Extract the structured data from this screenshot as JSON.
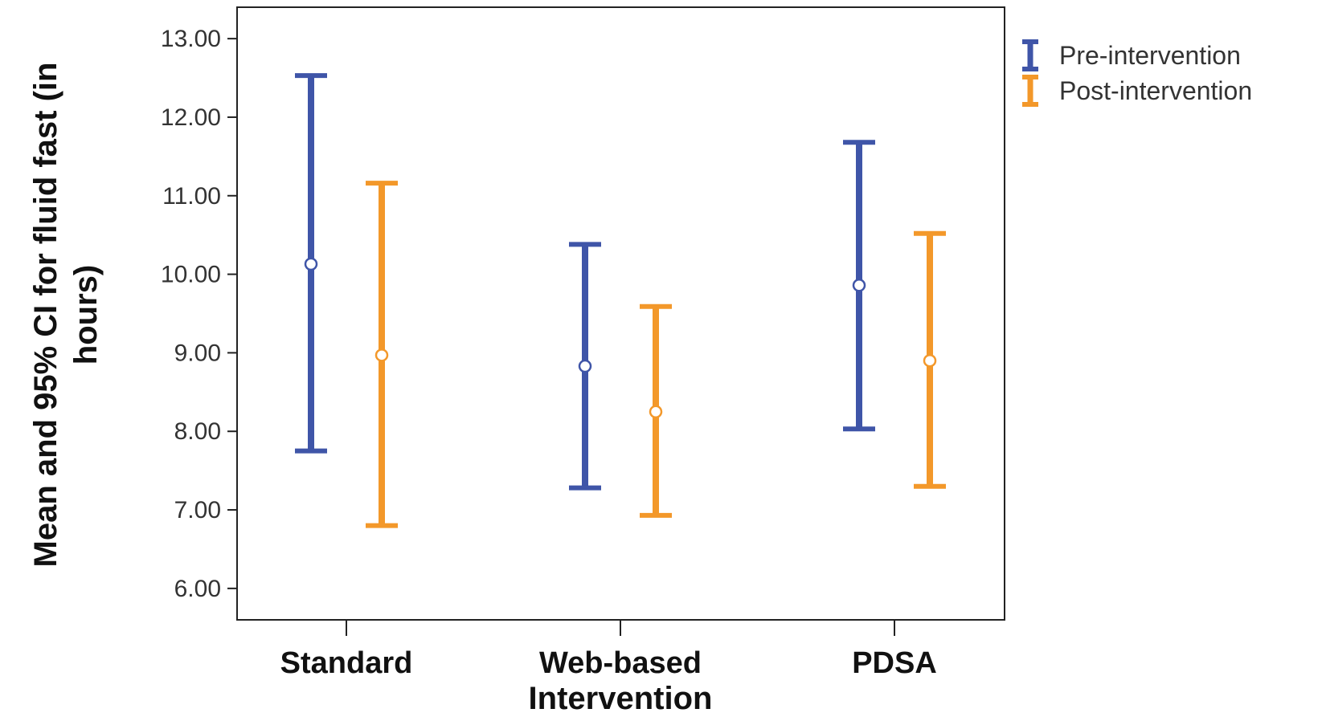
{
  "colors": {
    "pre": "#3F55A8",
    "post": "#F3982A",
    "frame": "#222222",
    "tick_text": "#333333"
  },
  "chart_data": {
    "type": "errorbar",
    "xlabel": "Intervention",
    "ylabel_lines": [
      "Mean and 95% CI for fluid fast (in",
      "hours)"
    ],
    "categories": [
      "Standard",
      "Web-based",
      "PDSA"
    ],
    "ylim": [
      5.6,
      13.4
    ],
    "yticks": [
      "6.00",
      "7.00",
      "8.00",
      "9.00",
      "10.00",
      "11.00",
      "12.00",
      "13.00"
    ],
    "legend_position": "top-right, outside plot",
    "grid": false,
    "series": [
      {
        "name": "Pre-intervention",
        "color": "#3F55A8",
        "mean": [
          10.13,
          8.83,
          9.86
        ],
        "lower": [
          7.75,
          7.28,
          8.03
        ],
        "upper": [
          12.53,
          10.38,
          11.68
        ]
      },
      {
        "name": "Post-intervention",
        "color": "#F3982A",
        "mean": [
          8.97,
          8.25,
          8.9
        ],
        "lower": [
          6.8,
          6.93,
          7.3
        ],
        "upper": [
          11.16,
          9.59,
          10.52
        ]
      }
    ]
  }
}
